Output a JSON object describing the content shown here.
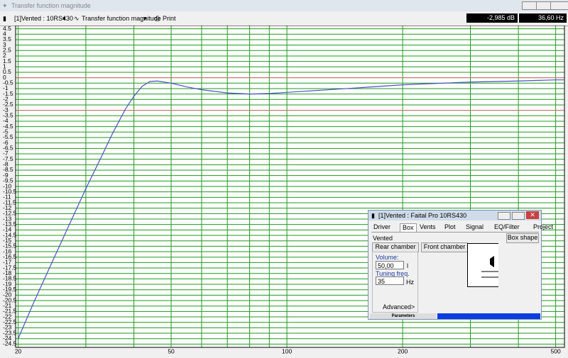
{
  "window": {
    "title": "Transfer function magnitude"
  },
  "toolbar": {
    "project": "[1]Vented : 10RS430",
    "graph": "Transfer function magnitude",
    "print": "Print",
    "readout_db": "-2,985 dB",
    "readout_hz": "36,60 Hz"
  },
  "chart_data": {
    "type": "line",
    "x": [
      20,
      22,
      25,
      28,
      30,
      33,
      35,
      38,
      40,
      42,
      44,
      46,
      50,
      55,
      60,
      70,
      80,
      90,
      100,
      150,
      200,
      300,
      400,
      500,
      527
    ],
    "series": [
      {
        "color": "#4a50c8",
        "values": [
          -24,
          -20.6,
          -16.3,
          -12.5,
          -10.2,
          -7.2,
          -5.3,
          -2.9,
          -1.7,
          -0.8,
          -0.35,
          -0.3,
          -0.5,
          -0.85,
          -1.1,
          -1.4,
          -1.5,
          -1.45,
          -1.35,
          -0.95,
          -0.65,
          -0.4,
          -0.3,
          -0.2,
          -0.2
        ]
      }
    ],
    "log_x": true,
    "xlim": [
      19.7,
      527
    ],
    "xticks": [
      20,
      50,
      100,
      200,
      500
    ],
    "xgrid": [
      20,
      30,
      40,
      50,
      60,
      70,
      80,
      90,
      100,
      200,
      300,
      400,
      500
    ],
    "ylim": [
      -24.8,
      4.8
    ],
    "yticks": [
      4.5,
      4,
      3.5,
      3,
      2.5,
      2,
      1.5,
      1,
      0.5,
      0,
      -0.5,
      -1,
      -1.5,
      -2,
      -2.5,
      -3,
      -3.5,
      -4,
      -4.5,
      -5,
      -5.5,
      -6,
      -6.5,
      -7,
      -7.5,
      -8,
      -8.5,
      -9,
      -9.5,
      -10,
      -10.5,
      -11,
      -11.5,
      -12,
      -12.5,
      -13,
      -13.5,
      -14,
      -14.5,
      -15,
      -15.5,
      -16,
      -16.5,
      -17,
      -17.5,
      -18,
      -18.5,
      -19,
      -19.5,
      -20,
      -20.5,
      -21,
      -21.5,
      -22,
      -22.5,
      -23,
      -23.5,
      -24,
      -24.5
    ],
    "grid": true,
    "grid_color": "#1f9a1f",
    "reference_lines": [
      {
        "value": 0,
        "color": "#e07070"
      },
      {
        "value": -3,
        "color": "#e07070"
      }
    ]
  },
  "dialog": {
    "title": "[1]Vented : Faital Pro 10RS430",
    "tabs": [
      "Driver",
      "Box",
      "Vents",
      "Plot",
      "Signal",
      "EQ/Filter",
      "Project"
    ],
    "mode": "Vented",
    "box_shape": "Box shape",
    "rear": "Rear chamber",
    "front": "Front chamber",
    "volume_label": "Volume:",
    "volume": "50,00",
    "volume_unit": "l",
    "tuning_label": "Tuning freq.",
    "tuning": "35",
    "tuning_unit": "Hz",
    "advanced": "Advanced>",
    "status": "Parameters"
  }
}
